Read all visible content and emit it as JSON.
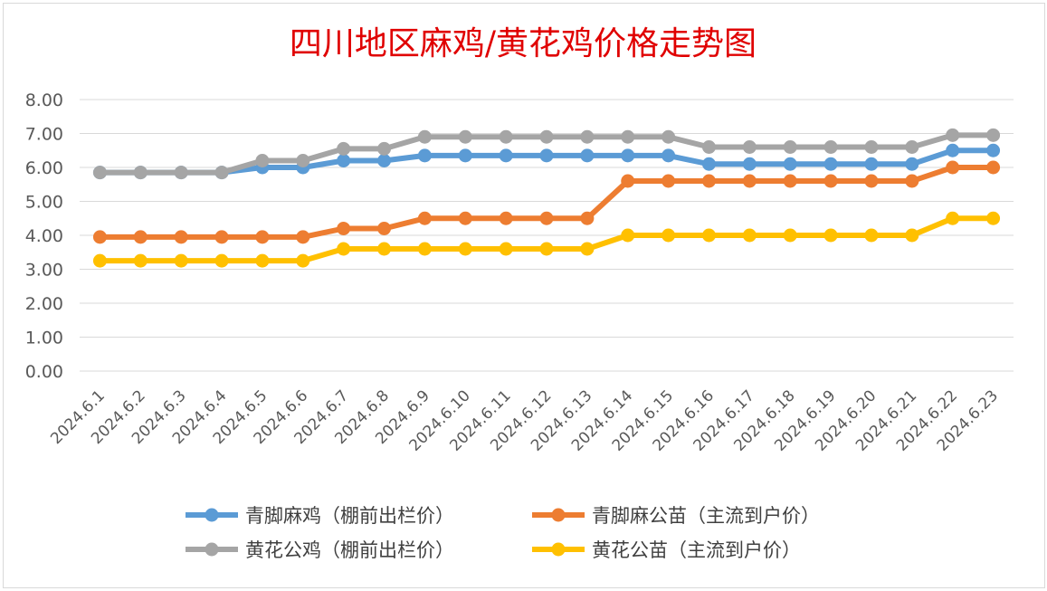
{
  "chart_data": {
    "type": "line",
    "title": "四川地区麻鸡/黄花鸡价格走势图",
    "categories": [
      "2024.6.1",
      "2024.6.2",
      "2024.6.3",
      "2024.6.4",
      "2024.6.5",
      "2024.6.6",
      "2024.6.7",
      "2024.6.8",
      "2024.6.9",
      "2024.6.10",
      "2024.6.11",
      "2024.6.12",
      "2024.6.13",
      "2024.6.14",
      "2024.6.15",
      "2024.6.16",
      "2024.6.17",
      "2024.6.18",
      "2024.6.19",
      "2024.6.20",
      "2024.6.21",
      "2024.6.22",
      "2024.6.23"
    ],
    "yticks": [
      "0.00",
      "1.00",
      "2.00",
      "3.00",
      "4.00",
      "5.00",
      "6.00",
      "7.00",
      "8.00"
    ],
    "ylim": [
      0,
      8
    ],
    "grid": true,
    "legend_position": "bottom",
    "series": [
      {
        "name": "青脚麻鸡（棚前出栏价）",
        "color": "#5b9bd5",
        "values": [
          5.85,
          5.85,
          5.85,
          5.85,
          6.0,
          6.0,
          6.2,
          6.2,
          6.35,
          6.35,
          6.35,
          6.35,
          6.35,
          6.35,
          6.35,
          6.1,
          6.1,
          6.1,
          6.1,
          6.1,
          6.1,
          6.5,
          6.5
        ]
      },
      {
        "name": "青脚麻公苗（主流到户价）",
        "color": "#ed7d31",
        "values": [
          3.95,
          3.95,
          3.95,
          3.95,
          3.95,
          3.95,
          4.2,
          4.2,
          4.5,
          4.5,
          4.5,
          4.5,
          4.5,
          5.6,
          5.6,
          5.6,
          5.6,
          5.6,
          5.6,
          5.6,
          5.6,
          6.0,
          6.0
        ]
      },
      {
        "name": "黄花公鸡（棚前出栏价）",
        "color": "#a5a5a5",
        "values": [
          5.85,
          5.85,
          5.85,
          5.85,
          6.2,
          6.2,
          6.55,
          6.55,
          6.9,
          6.9,
          6.9,
          6.9,
          6.9,
          6.9,
          6.9,
          6.6,
          6.6,
          6.6,
          6.6,
          6.6,
          6.6,
          6.95,
          6.95
        ]
      },
      {
        "name": "黄花公苗（主流到户价）",
        "color": "#ffc000",
        "values": [
          3.25,
          3.25,
          3.25,
          3.25,
          3.25,
          3.25,
          3.6,
          3.6,
          3.6,
          3.6,
          3.6,
          3.6,
          3.6,
          4.0,
          4.0,
          4.0,
          4.0,
          4.0,
          4.0,
          4.0,
          4.0,
          4.5,
          4.5
        ]
      }
    ],
    "draw_order": [
      0,
      1,
      3,
      2
    ],
    "legend_layout": [
      [
        0,
        1
      ],
      [
        2,
        3
      ]
    ]
  }
}
